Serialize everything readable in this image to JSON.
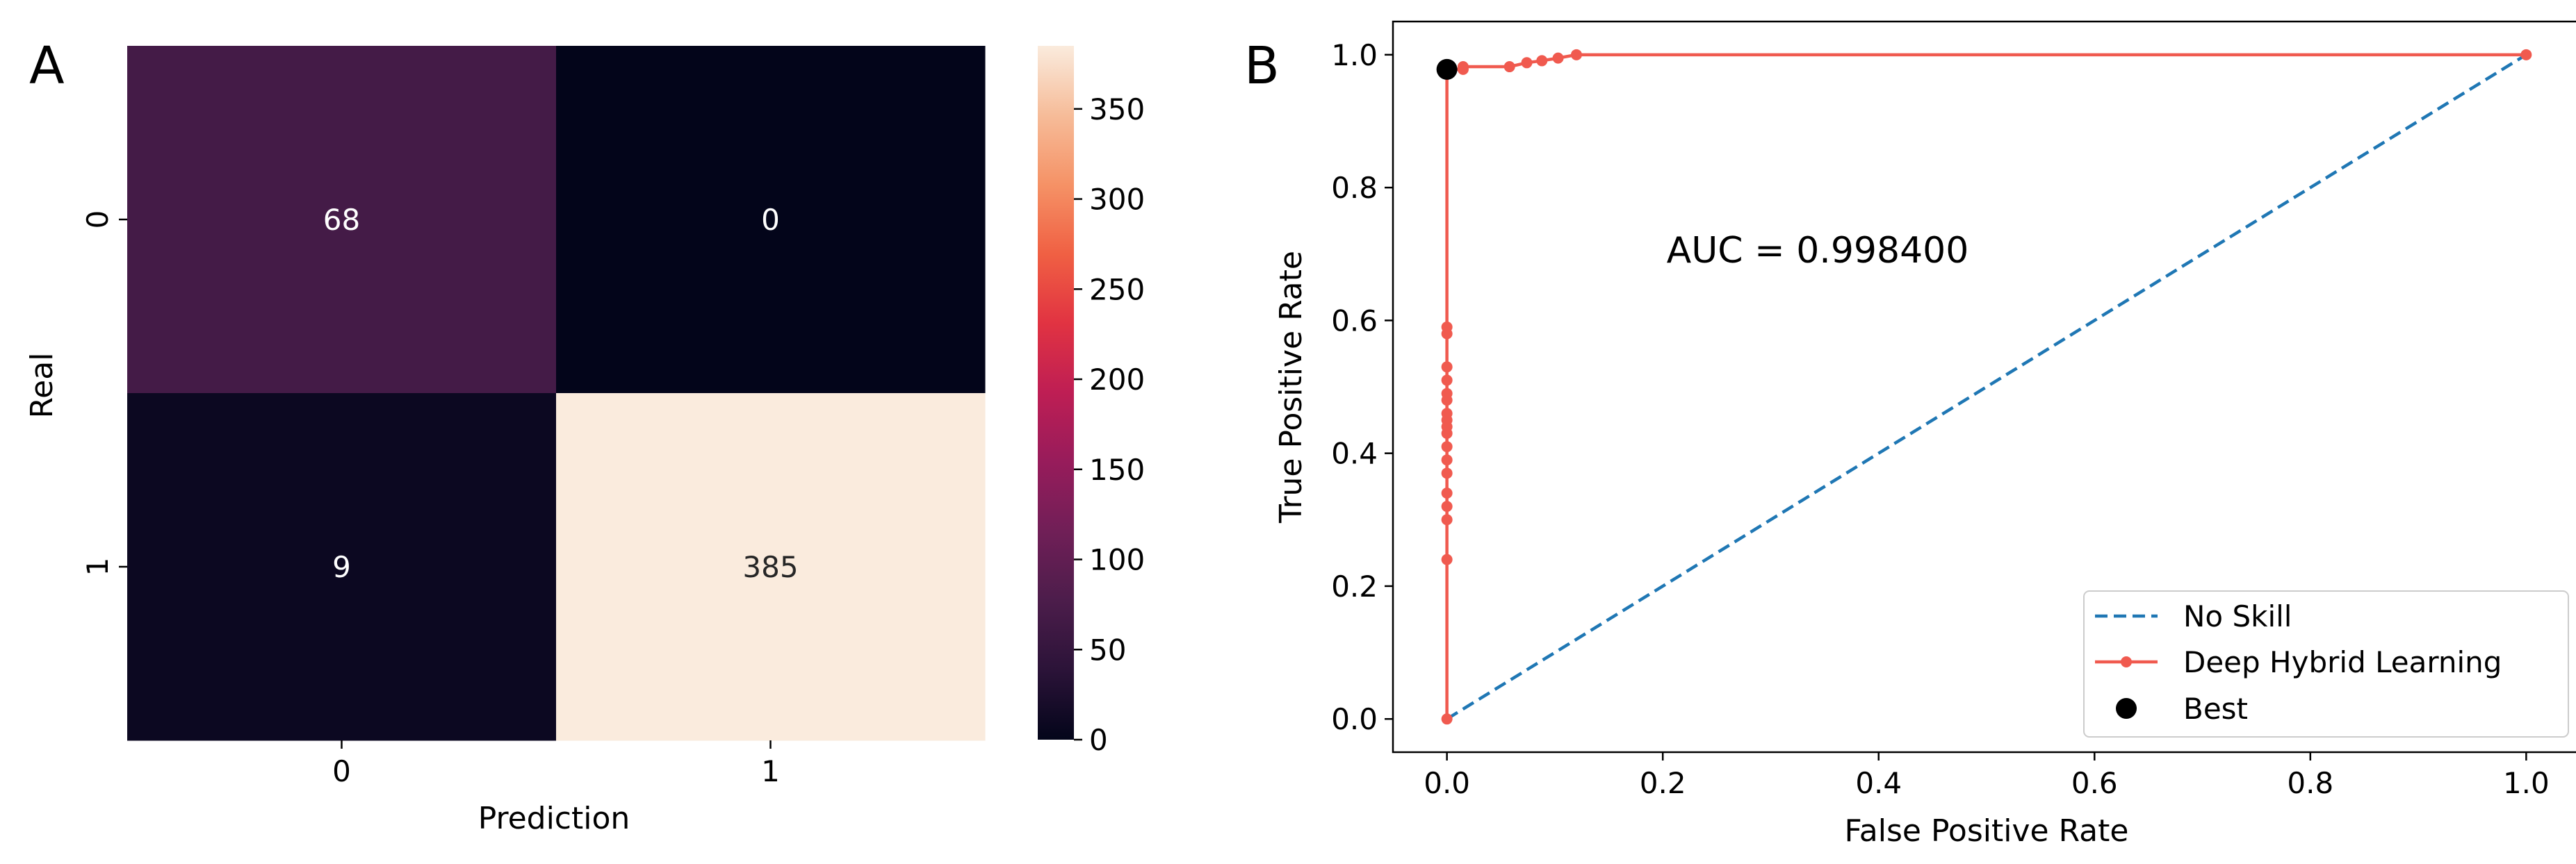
{
  "figure": {
    "panels": [
      "A",
      "B"
    ]
  },
  "chart_data": [
    {
      "type": "heatmap",
      "panel_label": "A",
      "title": "",
      "xlabel": "Prediction",
      "ylabel": "Real",
      "x_categories": [
        "0",
        "1"
      ],
      "y_categories": [
        "0",
        "1"
      ],
      "values": [
        [
          68,
          0
        ],
        [
          9,
          385
        ]
      ],
      "cell_labels": [
        [
          "68",
          "0"
        ],
        [
          "9",
          "385"
        ]
      ],
      "colorbar": {
        "min": 0,
        "max": 385,
        "ticks": [
          0,
          50,
          100,
          150,
          200,
          250,
          300,
          350
        ],
        "tick_labels": [
          "0",
          "50",
          "100",
          "150",
          "200",
          "250",
          "300",
          "350"
        ],
        "colormap": "rocket",
        "colors": [
          "#03051a",
          "#2b1338",
          "#4c1d4b",
          "#701f57",
          "#971c5b",
          "#be1e54",
          "#e13342",
          "#f06043",
          "#f59266",
          "#f6bc99",
          "#faebdd"
        ]
      }
    },
    {
      "type": "line",
      "panel_label": "B",
      "title": "",
      "xlabel": "False Positive Rate",
      "ylabel": "True Positive Rate",
      "xlim": [
        -0.05,
        1.05
      ],
      "ylim": [
        -0.05,
        1.05
      ],
      "x_ticks": [
        0.0,
        0.2,
        0.4,
        0.6,
        0.8,
        1.0
      ],
      "x_tick_labels": [
        "0.0",
        "0.2",
        "0.4",
        "0.6",
        "0.8",
        "1.0"
      ],
      "y_ticks": [
        0.0,
        0.2,
        0.4,
        0.6,
        0.8,
        1.0
      ],
      "y_tick_labels": [
        "0.0",
        "0.2",
        "0.4",
        "0.6",
        "0.8",
        "1.0"
      ],
      "annotation": "AUC = 0.998400",
      "legend_position": "lower right",
      "series": [
        {
          "name": "No Skill",
          "style": "dashed",
          "color": "#1f77b4",
          "x": [
            0,
            1
          ],
          "y": [
            0,
            1
          ]
        },
        {
          "name": "Deep Hybrid Learning",
          "style": "solid-markers",
          "color": "#f05a4f",
          "x": [
            0,
            0,
            0,
            0,
            0,
            0,
            0,
            0,
            0,
            0,
            0,
            0,
            0,
            0,
            0,
            0,
            0,
            0,
            0,
            0,
            0,
            0,
            0,
            0,
            0,
            0.015,
            0.015,
            0.058,
            0.074,
            0.088,
            0.103,
            0.12,
            1.0
          ],
          "y": [
            0,
            0.24,
            0.3,
            0.32,
            0.34,
            0.37,
            0.39,
            0.41,
            0.43,
            0.44,
            0.45,
            0.46,
            0.48,
            0.49,
            0.51,
            0.53,
            0.58,
            0.59,
            0.978,
            0.978,
            0.978,
            0.978,
            0.978,
            0.978,
            0.978,
            0.978,
            0.982,
            0.982,
            0.988,
            0.991,
            0.995,
            1.0,
            1.0
          ]
        },
        {
          "name": "Best",
          "style": "marker",
          "color": "#000000",
          "x": [
            0.0
          ],
          "y": [
            0.978
          ]
        }
      ]
    }
  ]
}
